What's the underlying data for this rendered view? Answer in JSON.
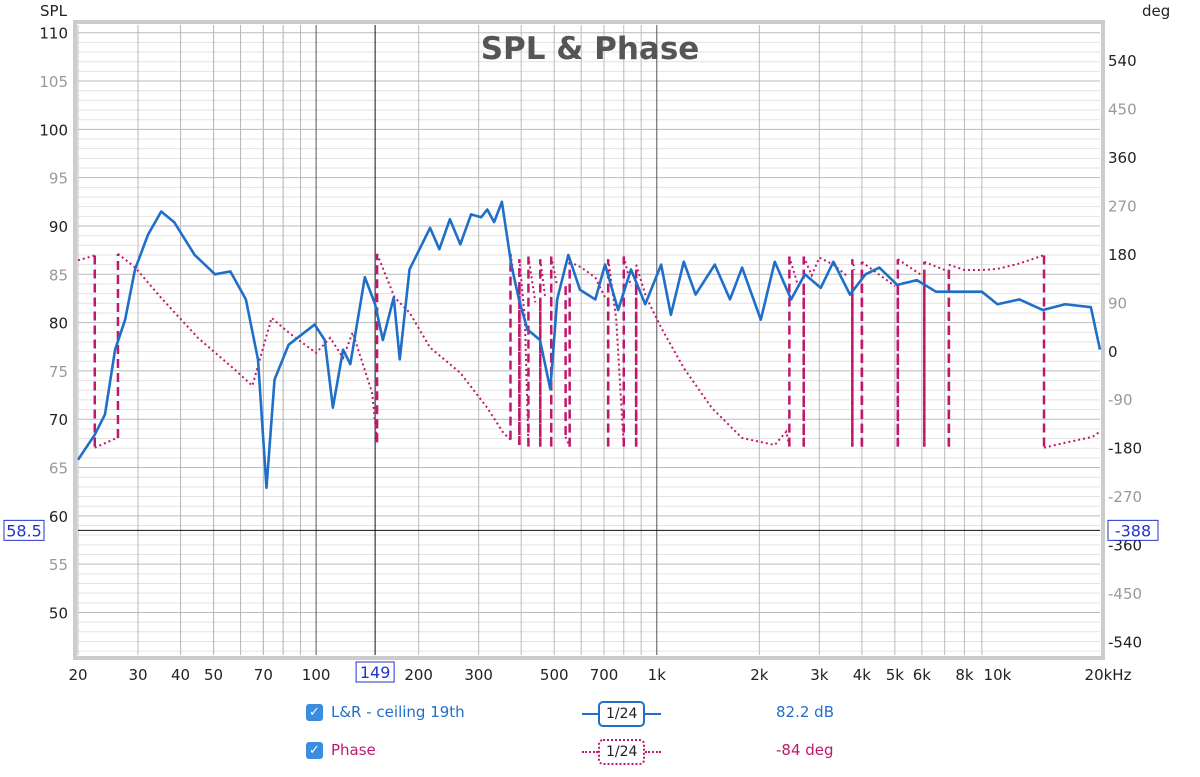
{
  "chart_data": {
    "type": "line",
    "title": "SPL & Phase",
    "ylabel": "SPL",
    "y2label": "deg",
    "xunit": "kHz",
    "xlim": [
      20,
      20000
    ],
    "ylim": [
      45.6,
      110.8
    ],
    "y2lim": [
      -565,
      605
    ],
    "xscale": "log",
    "x_tick_labels": [
      [
        "20",
        20
      ],
      [
        "30",
        30
      ],
      [
        "40",
        40
      ],
      [
        "50",
        50
      ],
      [
        "70",
        70
      ],
      [
        "100",
        100
      ],
      [
        "200",
        200
      ],
      [
        "300",
        300
      ],
      [
        "500",
        500
      ],
      [
        "700",
        700
      ],
      [
        "1k",
        1000
      ],
      [
        "2k",
        2000
      ],
      [
        "3k",
        3000
      ],
      [
        "4k",
        4000
      ],
      [
        "5k",
        5000
      ],
      [
        "6k",
        6000
      ],
      [
        "8k",
        8000
      ],
      [
        "10k",
        10000
      ],
      [
        "20kHz",
        20000
      ]
    ],
    "y_tick_labels": [
      "110",
      "105",
      "100",
      "95",
      "90",
      "85",
      "80",
      "75",
      "70",
      "65",
      "60",
      "55",
      "50"
    ],
    "y2_tick_labels": [
      "540",
      "450",
      "360",
      "270",
      "180",
      "90",
      "0",
      "-90",
      "-180",
      "-270",
      "-360",
      "-450",
      "-540"
    ],
    "cursor": {
      "freq_label": "149",
      "freq": 149,
      "spl_label": "58.5",
      "spl": 58.5,
      "phase_label": "-388"
    },
    "series": [
      {
        "name": "L&R - ceiling 19th",
        "color": "#1f6fc9",
        "smoothing": "1/24",
        "readout": "82.2 dB",
        "points": [
          [
            20,
            65.8
          ],
          [
            22.4,
            68.4
          ],
          [
            24,
            70.5
          ],
          [
            25.7,
            77.2
          ],
          [
            27.5,
            80.3
          ],
          [
            29.4,
            85.5
          ],
          [
            32.1,
            89.1
          ],
          [
            35.1,
            91.5
          ],
          [
            38.3,
            90.4
          ],
          [
            44,
            87
          ],
          [
            50.5,
            85
          ],
          [
            56,
            85.3
          ],
          [
            62.2,
            82.4
          ],
          [
            67.5,
            76.2
          ],
          [
            71.5,
            62.9
          ],
          [
            75.5,
            74.1
          ],
          [
            83,
            77.7
          ],
          [
            99,
            79.8
          ],
          [
            106,
            78.2
          ],
          [
            112,
            71.2
          ],
          [
            120,
            77.2
          ],
          [
            126,
            75.7
          ],
          [
            139,
            84.7
          ],
          [
            149,
            81.9
          ],
          [
            157,
            78.2
          ],
          [
            169,
            82.6
          ],
          [
            176,
            76.2
          ],
          [
            188,
            85.5
          ],
          [
            216,
            89.8
          ],
          [
            230,
            87.6
          ],
          [
            247,
            90.7
          ],
          [
            265,
            88.1
          ],
          [
            285,
            91.2
          ],
          [
            305,
            90.9
          ],
          [
            318,
            91.7
          ],
          [
            333,
            90.4
          ],
          [
            351,
            92.5
          ],
          [
            374,
            86
          ],
          [
            394,
            82.4
          ],
          [
            417,
            79.3
          ],
          [
            454,
            78.2
          ],
          [
            487,
            73.1
          ],
          [
            510,
            82.4
          ],
          [
            550,
            87
          ],
          [
            595,
            83.4
          ],
          [
            660,
            82.4
          ],
          [
            705,
            86
          ],
          [
            770,
            81.3
          ],
          [
            840,
            85.5
          ],
          [
            925,
            81.9
          ],
          [
            1030,
            86
          ],
          [
            1100,
            80.8
          ],
          [
            1200,
            86.3
          ],
          [
            1300,
            82.9
          ],
          [
            1480,
            86
          ],
          [
            1640,
            82.4
          ],
          [
            1780,
            85.7
          ],
          [
            2020,
            80.3
          ],
          [
            2220,
            86.3
          ],
          [
            2480,
            82.4
          ],
          [
            2720,
            85
          ],
          [
            3030,
            83.6
          ],
          [
            3300,
            86.3
          ],
          [
            3690,
            82.9
          ],
          [
            4100,
            85
          ],
          [
            4500,
            85.7
          ],
          [
            5080,
            83.9
          ],
          [
            5800,
            84.4
          ],
          [
            6600,
            83.2
          ],
          [
            7800,
            83.2
          ],
          [
            9000,
            83.2
          ],
          [
            10000,
            81.9
          ],
          [
            11600,
            82.4
          ],
          [
            13600,
            81.3
          ],
          [
            15800,
            81.9
          ],
          [
            18800,
            81.6
          ],
          [
            20000,
            77.2
          ]
        ]
      },
      {
        "name": "Phase",
        "color": "#c0176e",
        "smoothing": "1/24",
        "readout": "-84 deg",
        "points": [
          [
            20,
            168
          ],
          [
            22.4,
            177
          ],
          [
            22.4,
            -180
          ],
          [
            26,
            -162
          ],
          [
            26.2,
            180
          ],
          [
            29.4,
            155
          ],
          [
            35,
            99
          ],
          [
            45,
            24
          ],
          [
            57,
            -32
          ],
          [
            65,
            -65
          ],
          [
            74,
            61
          ],
          [
            83,
            34
          ],
          [
            100,
            -4
          ],
          [
            110,
            24
          ],
          [
            120,
            -13
          ],
          [
            128,
            34
          ],
          [
            146,
            -78
          ],
          [
            151,
            -170
          ],
          [
            151,
            180
          ],
          [
            170,
            99
          ],
          [
            188,
            71
          ],
          [
            216,
            6
          ],
          [
            265,
            -41
          ],
          [
            318,
            -106
          ],
          [
            355,
            -153
          ],
          [
            372,
            -165
          ],
          [
            372,
            180
          ],
          [
            385,
            120
          ],
          [
            395,
            -175
          ],
          [
            395,
            170
          ],
          [
            410,
            60
          ],
          [
            420,
            -178
          ],
          [
            420,
            175
          ],
          [
            440,
            90
          ],
          [
            455,
            -178
          ],
          [
            455,
            170
          ],
          [
            470,
            100
          ],
          [
            490,
            -178
          ],
          [
            490,
            175
          ],
          [
            510,
            120
          ],
          [
            540,
            -160
          ],
          [
            555,
            -178
          ],
          [
            555,
            165
          ],
          [
            600,
            155
          ],
          [
            660,
            136
          ],
          [
            705,
            99
          ],
          [
            720,
            -178
          ],
          [
            720,
            170
          ],
          [
            760,
            60
          ],
          [
            800,
            -178
          ],
          [
            800,
            175
          ],
          [
            840,
            120
          ],
          [
            870,
            -178
          ],
          [
            870,
            160
          ],
          [
            930,
            100
          ],
          [
            1030,
            43
          ],
          [
            1200,
            -32
          ],
          [
            1450,
            -106
          ],
          [
            1780,
            -162
          ],
          [
            2220,
            -175
          ],
          [
            2400,
            -150
          ],
          [
            2450,
            -178
          ],
          [
            2450,
            175
          ],
          [
            2600,
            120
          ],
          [
            2700,
            -178
          ],
          [
            2700,
            175
          ],
          [
            2850,
            140
          ],
          [
            3000,
            173
          ],
          [
            3300,
            160
          ],
          [
            3600,
            140
          ],
          [
            3750,
            -178
          ],
          [
            3750,
            170
          ],
          [
            3800,
            150
          ],
          [
            4000,
            -178
          ],
          [
            4000,
            165
          ],
          [
            5000,
            120
          ],
          [
            5100,
            -178
          ],
          [
            5100,
            170
          ],
          [
            6000,
            140
          ],
          [
            6100,
            -178
          ],
          [
            6100,
            165
          ],
          [
            7000,
            150
          ],
          [
            7200,
            -178
          ],
          [
            7200,
            160
          ],
          [
            8000,
            150
          ],
          [
            9000,
            150
          ],
          [
            10000,
            152
          ],
          [
            11600,
            162
          ],
          [
            13600,
            177
          ],
          [
            13700,
            -180
          ],
          [
            16000,
            -170
          ],
          [
            19000,
            -160
          ],
          [
            20000,
            -150
          ]
        ]
      }
    ]
  }
}
